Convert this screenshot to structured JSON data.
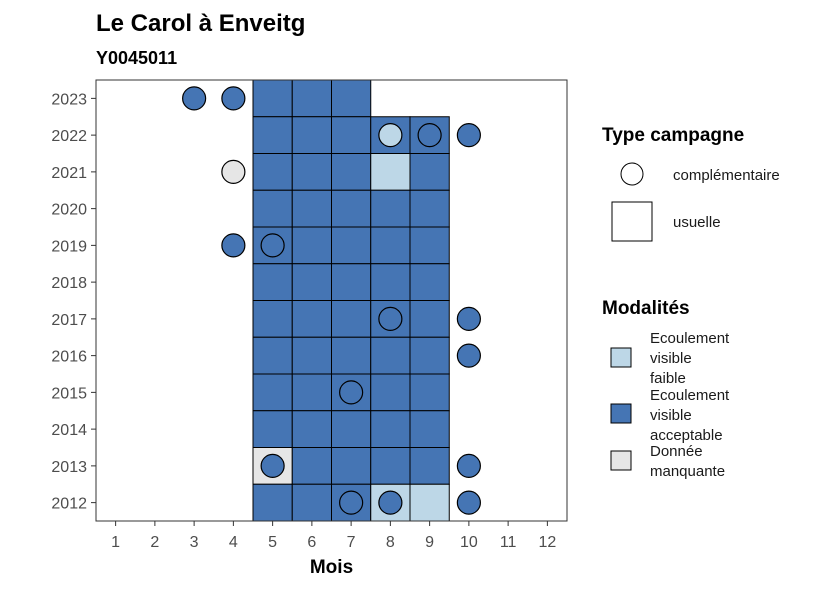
{
  "chart_data": {
    "type": "heatmap",
    "title": "Le Carol à Enveitg",
    "subtitle": "Y0045011",
    "xlabel": "Mois",
    "ylabel": "",
    "x_ticks": [
      1,
      2,
      3,
      4,
      5,
      6,
      7,
      8,
      9,
      10,
      11,
      12
    ],
    "y_ticks": [
      2012,
      2013,
      2014,
      2015,
      2016,
      2017,
      2018,
      2019,
      2020,
      2021,
      2022,
      2023
    ],
    "xlim": [
      0.5,
      12.5
    ],
    "ylim": [
      2011.5,
      2023.5
    ],
    "grid": false,
    "legend_position": "right",
    "colors": {
      "Ecoulement visible faible": "#bdd7e7",
      "Ecoulement visible acceptable": "#4575b4",
      "Donnée manquante": "#e6e6e6"
    },
    "legend_type": {
      "title": "Type campagne",
      "items": [
        {
          "label": "complémentaire",
          "shape": "circle"
        },
        {
          "label": "usuelle",
          "shape": "square"
        }
      ]
    },
    "legend_modalites": {
      "title": "Modalités",
      "items": [
        {
          "label_lines": [
            "Ecoulement",
            "visible",
            "faible"
          ],
          "key": "Ecoulement visible faible"
        },
        {
          "label_lines": [
            "Ecoulement",
            "visible",
            "acceptable"
          ],
          "key": "Ecoulement visible acceptable"
        },
        {
          "label_lines": [
            "Donnée",
            "manquante"
          ],
          "key": "Donnée manquante"
        }
      ]
    },
    "usuelle": [
      {
        "year": 2023,
        "month": 5,
        "status": "Ecoulement visible acceptable"
      },
      {
        "year": 2023,
        "month": 6,
        "status": "Ecoulement visible acceptable"
      },
      {
        "year": 2023,
        "month": 7,
        "status": "Ecoulement visible acceptable"
      },
      {
        "year": 2022,
        "month": 5,
        "status": "Ecoulement visible acceptable"
      },
      {
        "year": 2022,
        "month": 6,
        "status": "Ecoulement visible acceptable"
      },
      {
        "year": 2022,
        "month": 7,
        "status": "Ecoulement visible acceptable"
      },
      {
        "year": 2022,
        "month": 8,
        "status": "Ecoulement visible acceptable"
      },
      {
        "year": 2022,
        "month": 9,
        "status": "Ecoulement visible acceptable"
      },
      {
        "year": 2021,
        "month": 5,
        "status": "Ecoulement visible acceptable"
      },
      {
        "year": 2021,
        "month": 6,
        "status": "Ecoulement visible acceptable"
      },
      {
        "year": 2021,
        "month": 7,
        "status": "Ecoulement visible acceptable"
      },
      {
        "year": 2021,
        "month": 8,
        "status": "Ecoulement visible faible"
      },
      {
        "year": 2021,
        "month": 9,
        "status": "Ecoulement visible acceptable"
      },
      {
        "year": 2020,
        "month": 5,
        "status": "Ecoulement visible acceptable"
      },
      {
        "year": 2020,
        "month": 6,
        "status": "Ecoulement visible acceptable"
      },
      {
        "year": 2020,
        "month": 7,
        "status": "Ecoulement visible acceptable"
      },
      {
        "year": 2020,
        "month": 8,
        "status": "Ecoulement visible acceptable"
      },
      {
        "year": 2020,
        "month": 9,
        "status": "Ecoulement visible acceptable"
      },
      {
        "year": 2019,
        "month": 5,
        "status": "Ecoulement visible acceptable"
      },
      {
        "year": 2019,
        "month": 6,
        "status": "Ecoulement visible acceptable"
      },
      {
        "year": 2019,
        "month": 7,
        "status": "Ecoulement visible acceptable"
      },
      {
        "year": 2019,
        "month": 8,
        "status": "Ecoulement visible acceptable"
      },
      {
        "year": 2019,
        "month": 9,
        "status": "Ecoulement visible acceptable"
      },
      {
        "year": 2018,
        "month": 5,
        "status": "Ecoulement visible acceptable"
      },
      {
        "year": 2018,
        "month": 6,
        "status": "Ecoulement visible acceptable"
      },
      {
        "year": 2018,
        "month": 7,
        "status": "Ecoulement visible acceptable"
      },
      {
        "year": 2018,
        "month": 8,
        "status": "Ecoulement visible acceptable"
      },
      {
        "year": 2018,
        "month": 9,
        "status": "Ecoulement visible acceptable"
      },
      {
        "year": 2017,
        "month": 5,
        "status": "Ecoulement visible acceptable"
      },
      {
        "year": 2017,
        "month": 6,
        "status": "Ecoulement visible acceptable"
      },
      {
        "year": 2017,
        "month": 7,
        "status": "Ecoulement visible acceptable"
      },
      {
        "year": 2017,
        "month": 8,
        "status": "Ecoulement visible acceptable"
      },
      {
        "year": 2017,
        "month": 9,
        "status": "Ecoulement visible acceptable"
      },
      {
        "year": 2016,
        "month": 5,
        "status": "Ecoulement visible acceptable"
      },
      {
        "year": 2016,
        "month": 6,
        "status": "Ecoulement visible acceptable"
      },
      {
        "year": 2016,
        "month": 7,
        "status": "Ecoulement visible acceptable"
      },
      {
        "year": 2016,
        "month": 8,
        "status": "Ecoulement visible acceptable"
      },
      {
        "year": 2016,
        "month": 9,
        "status": "Ecoulement visible acceptable"
      },
      {
        "year": 2015,
        "month": 5,
        "status": "Ecoulement visible acceptable"
      },
      {
        "year": 2015,
        "month": 6,
        "status": "Ecoulement visible acceptable"
      },
      {
        "year": 2015,
        "month": 7,
        "status": "Ecoulement visible acceptable"
      },
      {
        "year": 2015,
        "month": 8,
        "status": "Ecoulement visible acceptable"
      },
      {
        "year": 2015,
        "month": 9,
        "status": "Ecoulement visible acceptable"
      },
      {
        "year": 2014,
        "month": 5,
        "status": "Ecoulement visible acceptable"
      },
      {
        "year": 2014,
        "month": 6,
        "status": "Ecoulement visible acceptable"
      },
      {
        "year": 2014,
        "month": 7,
        "status": "Ecoulement visible acceptable"
      },
      {
        "year": 2014,
        "month": 8,
        "status": "Ecoulement visible acceptable"
      },
      {
        "year": 2014,
        "month": 9,
        "status": "Ecoulement visible acceptable"
      },
      {
        "year": 2013,
        "month": 5,
        "status": "Donnée manquante"
      },
      {
        "year": 2013,
        "month": 6,
        "status": "Ecoulement visible acceptable"
      },
      {
        "year": 2013,
        "month": 7,
        "status": "Ecoulement visible acceptable"
      },
      {
        "year": 2013,
        "month": 8,
        "status": "Ecoulement visible acceptable"
      },
      {
        "year": 2013,
        "month": 9,
        "status": "Ecoulement visible acceptable"
      },
      {
        "year": 2012,
        "month": 5,
        "status": "Ecoulement visible acceptable"
      },
      {
        "year": 2012,
        "month": 6,
        "status": "Ecoulement visible acceptable"
      },
      {
        "year": 2012,
        "month": 7,
        "status": "Ecoulement visible acceptable"
      },
      {
        "year": 2012,
        "month": 8,
        "status": "Ecoulement visible faible"
      },
      {
        "year": 2012,
        "month": 9,
        "status": "Ecoulement visible faible"
      }
    ],
    "complementaire": [
      {
        "year": 2023,
        "month": 3,
        "status": "Ecoulement visible acceptable"
      },
      {
        "year": 2023,
        "month": 4,
        "status": "Ecoulement visible acceptable"
      },
      {
        "year": 2022,
        "month": 8,
        "status": "Ecoulement visible faible"
      },
      {
        "year": 2022,
        "month": 9,
        "status": "Ecoulement visible acceptable"
      },
      {
        "year": 2022,
        "month": 10,
        "status": "Ecoulement visible acceptable"
      },
      {
        "year": 2021,
        "month": 4,
        "status": "Donnée manquante"
      },
      {
        "year": 2019,
        "month": 4,
        "status": "Ecoulement visible acceptable"
      },
      {
        "year": 2019,
        "month": 5,
        "status": "Ecoulement visible acceptable"
      },
      {
        "year": 2017,
        "month": 8,
        "status": "Ecoulement visible acceptable"
      },
      {
        "year": 2017,
        "month": 10,
        "status": "Ecoulement visible acceptable"
      },
      {
        "year": 2016,
        "month": 10,
        "status": "Ecoulement visible acceptable"
      },
      {
        "year": 2015,
        "month": 7,
        "status": "Ecoulement visible acceptable"
      },
      {
        "year": 2013,
        "month": 5,
        "status": "Ecoulement visible acceptable"
      },
      {
        "year": 2013,
        "month": 10,
        "status": "Ecoulement visible acceptable"
      },
      {
        "year": 2012,
        "month": 7,
        "status": "Ecoulement visible acceptable"
      },
      {
        "year": 2012,
        "month": 8,
        "status": "Ecoulement visible acceptable"
      },
      {
        "year": 2012,
        "month": 10,
        "status": "Ecoulement visible acceptable"
      }
    ]
  }
}
